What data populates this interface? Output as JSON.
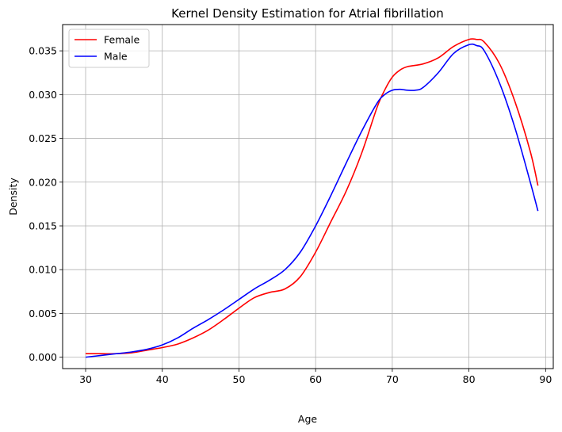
{
  "chart_data": {
    "type": "line",
    "title": "Kernel Density Estimation for Atrial fibrillation",
    "xlabel": "Age",
    "ylabel": "Density",
    "xlim": [
      27,
      91
    ],
    "ylim": [
      -0.0013,
      0.038
    ],
    "xticks": [
      30,
      40,
      50,
      60,
      70,
      80,
      90
    ],
    "yticks": [
      0.0,
      0.005,
      0.01,
      0.015,
      0.02,
      0.025,
      0.03,
      0.035
    ],
    "ytick_labels": [
      "0.000",
      "0.005",
      "0.010",
      "0.015",
      "0.020",
      "0.025",
      "0.030",
      "0.035"
    ],
    "grid": true,
    "legend_position": "top-left",
    "series": [
      {
        "name": "Female",
        "color": "#ff0000",
        "x": [
          30,
          32,
          34,
          36,
          38,
          40,
          42,
          44,
          46,
          48,
          50,
          52,
          54,
          56,
          58,
          60,
          62,
          64,
          66,
          68,
          69,
          70,
          71,
          72,
          74,
          76,
          78,
          80,
          81,
          82,
          84,
          86,
          88,
          89
        ],
        "y": [
          0.0004,
          0.0004,
          0.0004,
          0.0005,
          0.0008,
          0.0011,
          0.0015,
          0.0022,
          0.0031,
          0.0043,
          0.0056,
          0.0068,
          0.0074,
          0.0078,
          0.0092,
          0.012,
          0.0155,
          0.019,
          0.0233,
          0.0285,
          0.0305,
          0.032,
          0.0328,
          0.0332,
          0.0335,
          0.0342,
          0.0355,
          0.0363,
          0.0363,
          0.036,
          0.0335,
          0.0292,
          0.0235,
          0.0196
        ]
      },
      {
        "name": "Male",
        "color": "#0000ff",
        "x": [
          30,
          32,
          34,
          36,
          38,
          40,
          42,
          44,
          46,
          48,
          50,
          52,
          54,
          56,
          58,
          60,
          62,
          64,
          66,
          68,
          69,
          70,
          71,
          72,
          73,
          74,
          76,
          78,
          80,
          81,
          82,
          84,
          86,
          88,
          89
        ],
        "y": [
          0.0,
          0.0002,
          0.0004,
          0.0006,
          0.0009,
          0.0014,
          0.0022,
          0.0033,
          0.0043,
          0.0054,
          0.0066,
          0.0078,
          0.0088,
          0.01,
          0.012,
          0.015,
          0.0185,
          0.0222,
          0.0258,
          0.029,
          0.03,
          0.0305,
          0.0306,
          0.0305,
          0.0305,
          0.0308,
          0.0325,
          0.0347,
          0.0357,
          0.0356,
          0.035,
          0.0313,
          0.0262,
          0.02,
          0.0167
        ]
      }
    ]
  }
}
